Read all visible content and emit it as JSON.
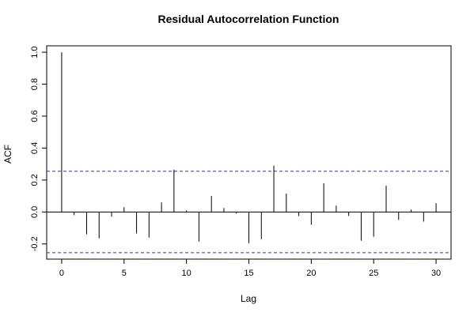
{
  "chart_data": {
    "type": "bar",
    "title": "Residual Autocorrelation Function",
    "xlabel": "Lag",
    "ylabel": "ACF",
    "xlim": [
      -1.2,
      31.2
    ],
    "ylim": [
      -0.295,
      1.04
    ],
    "x_ticks": [
      0,
      5,
      10,
      15,
      20,
      25,
      30
    ],
    "x_tick_labels": [
      "0",
      "5",
      "10",
      "15",
      "20",
      "25",
      "30"
    ],
    "y_ticks": [
      -0.2,
      0.0,
      0.2,
      0.4,
      0.6,
      0.8,
      1.0
    ],
    "y_tick_labels": [
      "-0.2",
      "0.0",
      "0.2",
      "0.4",
      "0.6",
      "0.8",
      "1.0"
    ],
    "lags": [
      0,
      1,
      2,
      3,
      4,
      5,
      6,
      7,
      8,
      9,
      10,
      11,
      12,
      13,
      14,
      15,
      16,
      17,
      18,
      19,
      20,
      21,
      22,
      23,
      24,
      25,
      26,
      27,
      28,
      29,
      30
    ],
    "values": [
      1.0,
      -0.02,
      -0.14,
      -0.165,
      -0.03,
      0.03,
      -0.135,
      -0.16,
      0.06,
      0.265,
      0.01,
      -0.185,
      0.1,
      0.025,
      -0.01,
      -0.195,
      -0.17,
      0.29,
      0.115,
      -0.025,
      -0.08,
      0.18,
      0.04,
      -0.025,
      -0.18,
      -0.155,
      0.165,
      -0.05,
      0.015,
      -0.06,
      0.055
    ],
    "confidence_bound": 0.255,
    "grid": false,
    "colors": {
      "lines": "#000000",
      "bounds": "#3333aa",
      "zero": "#000000"
    }
  }
}
